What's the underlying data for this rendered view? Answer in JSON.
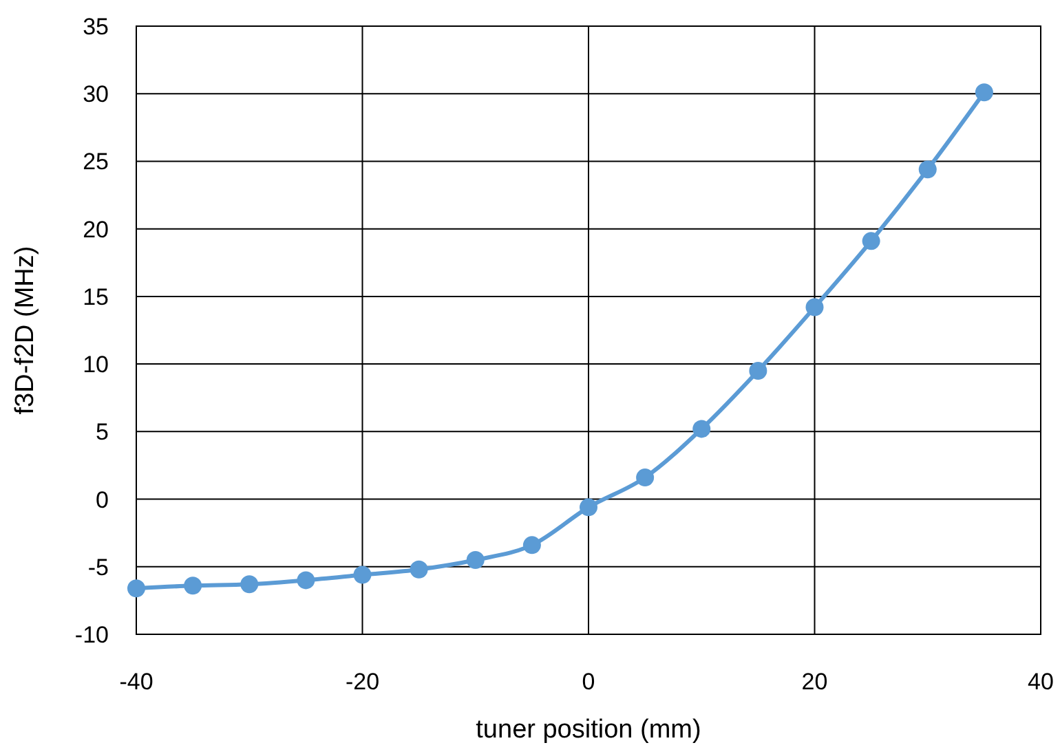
{
  "chart_data": {
    "type": "line",
    "xlabel": "tuner position (mm)",
    "ylabel": "f3D-f2D (MHz)",
    "x": [
      -40,
      -35,
      -30,
      -25,
      -20,
      -15,
      -10,
      -5,
      0,
      5,
      10,
      15,
      20,
      25,
      30,
      35
    ],
    "series": [
      {
        "color": "#5b9bd5",
        "values": [
          -6.6,
          -6.4,
          -6.3,
          -6.0,
          -5.6,
          -5.2,
          -4.5,
          -3.4,
          -0.6,
          1.6,
          5.2,
          9.5,
          14.2,
          19.1,
          24.4,
          30.1
        ]
      }
    ],
    "xlim": [
      -40,
      40
    ],
    "xticks": [
      -40,
      -20,
      0,
      20,
      40
    ],
    "ylim": [
      -10,
      35
    ],
    "yticks": [
      -10,
      -5,
      0,
      5,
      10,
      15,
      20,
      25,
      30,
      35
    ],
    "grid": true,
    "marker": "circle",
    "line_style": "solid"
  }
}
